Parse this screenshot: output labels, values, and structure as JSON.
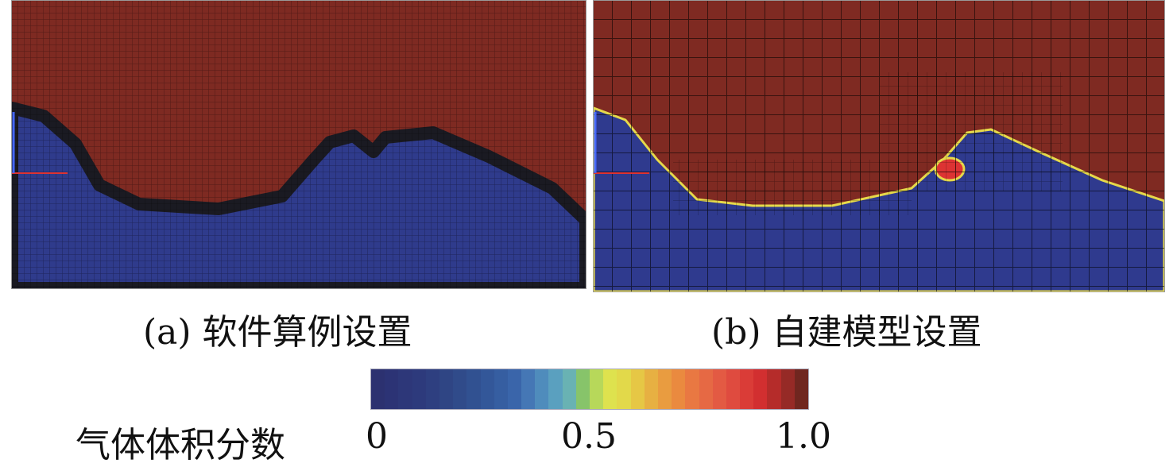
{
  "panels": [
    {
      "caption": "(a) 软件算例设置",
      "colors": {
        "gas": "#7e2a22",
        "liquid": "#2f3b8c",
        "interface": "#1a1a22"
      }
    },
    {
      "caption": "(b) 自建模型设置",
      "colors": {
        "gas": "#7f2a22",
        "liquid": "#2f3a8e",
        "interface": "#e6d94a"
      }
    }
  ],
  "colorbar": {
    "title": "气体体积分数",
    "ticks": [
      "0",
      "0.5",
      "1.0"
    ],
    "range": [
      0,
      1
    ],
    "colors": [
      "#2c3170",
      "#2c3375",
      "#2d3779",
      "#2d3a7c",
      "#2e3f80",
      "#2f4584",
      "#304b8a",
      "#315191",
      "#335799",
      "#365ea1",
      "#3a65aa",
      "#4577b5",
      "#4f8cbc",
      "#5aa0bf",
      "#69b2b3",
      "#87c46a",
      "#b7d85a",
      "#dee24e",
      "#e2d94a",
      "#e6c745",
      "#e7b042",
      "#e99c40",
      "#ea8a3f",
      "#e97842",
      "#e66944",
      "#e35a43",
      "#df4b3f",
      "#da3c37",
      "#d22f30",
      "#b52c2a",
      "#962a26",
      "#70261f"
    ]
  }
}
